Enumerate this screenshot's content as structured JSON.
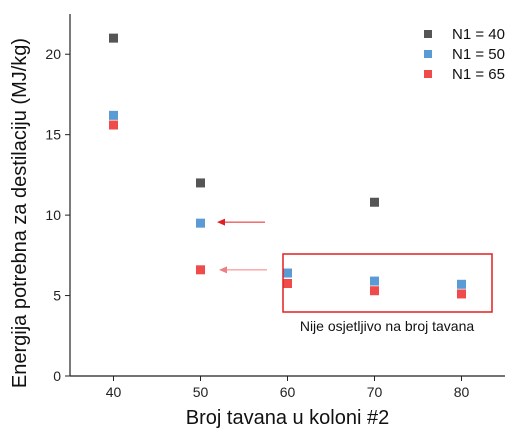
{
  "chart_data": {
    "type": "scatter",
    "xlabel": "Broj tavana u koloni #2",
    "ylabel": "Energija potrebna za destilaciju (MJ/kg)",
    "xlim": [
      35,
      85
    ],
    "ylim": [
      0,
      22.5
    ],
    "xticks": [
      40,
      50,
      60,
      70,
      80
    ],
    "yticks": [
      0,
      5,
      10,
      15,
      20
    ],
    "grid": false,
    "legend_position": "top-right",
    "series": [
      {
        "name": "N1 = 40",
        "color": "#555555",
        "x": [
          40,
          50,
          70
        ],
        "y": [
          21.0,
          12.0,
          10.8
        ]
      },
      {
        "name": "N1 = 50",
        "color": "#5b9bd5",
        "x": [
          40,
          50,
          60,
          70,
          80
        ],
        "y": [
          16.2,
          9.5,
          6.4,
          5.9,
          5.7
        ]
      },
      {
        "name": "N1 = 65",
        "color": "#f04b4b",
        "x": [
          40,
          50,
          60,
          70,
          80
        ],
        "y": [
          15.6,
          6.6,
          5.75,
          5.3,
          5.1
        ]
      }
    ],
    "annotations": [
      {
        "text": "Nije osjetljivo na broj tavana"
      }
    ],
    "annotation_color": "#e02020"
  }
}
